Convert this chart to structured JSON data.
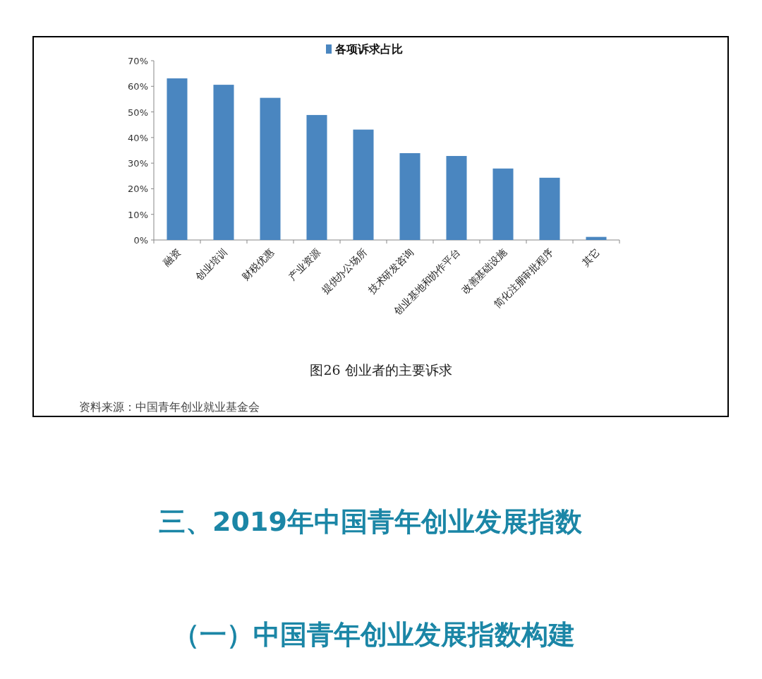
{
  "chart_data": {
    "type": "bar",
    "title": "图26 创业者的主要诉求",
    "categories": [
      "融资",
      "创业培训",
      "财税优惠",
      "产业资源",
      "提供办公场所",
      "技术研发咨询",
      "创业基地和协作平台",
      "改善基础设施",
      "简化注册审批程序",
      "其它"
    ],
    "series": [
      {
        "name": "各项诉求占比",
        "color": "#4a86c0",
        "values": [
          63.1,
          60.6,
          55.5,
          48.8,
          43.1,
          33.9,
          32.8,
          27.9,
          24.3,
          1.2
        ]
      }
    ],
    "ylim": [
      0,
      70
    ],
    "yticks": [
      {
        "value": 0,
        "label": "0%"
      },
      {
        "value": 10,
        "label": "10%"
      },
      {
        "value": 20,
        "label": "20%"
      },
      {
        "value": 30,
        "label": "30%"
      },
      {
        "value": 40,
        "label": "40%"
      },
      {
        "value": 50,
        "label": "50%"
      },
      {
        "value": 60,
        "label": "60%"
      },
      {
        "value": 70,
        "label": "70%"
      }
    ],
    "legend": "top",
    "grid": false,
    "annotations": [
      "资料来源：中国青年创业就业基金会",
      "三、2019年中国青年创业发展指数",
      "（一）中国青年创业发展指数构建"
    ]
  }
}
